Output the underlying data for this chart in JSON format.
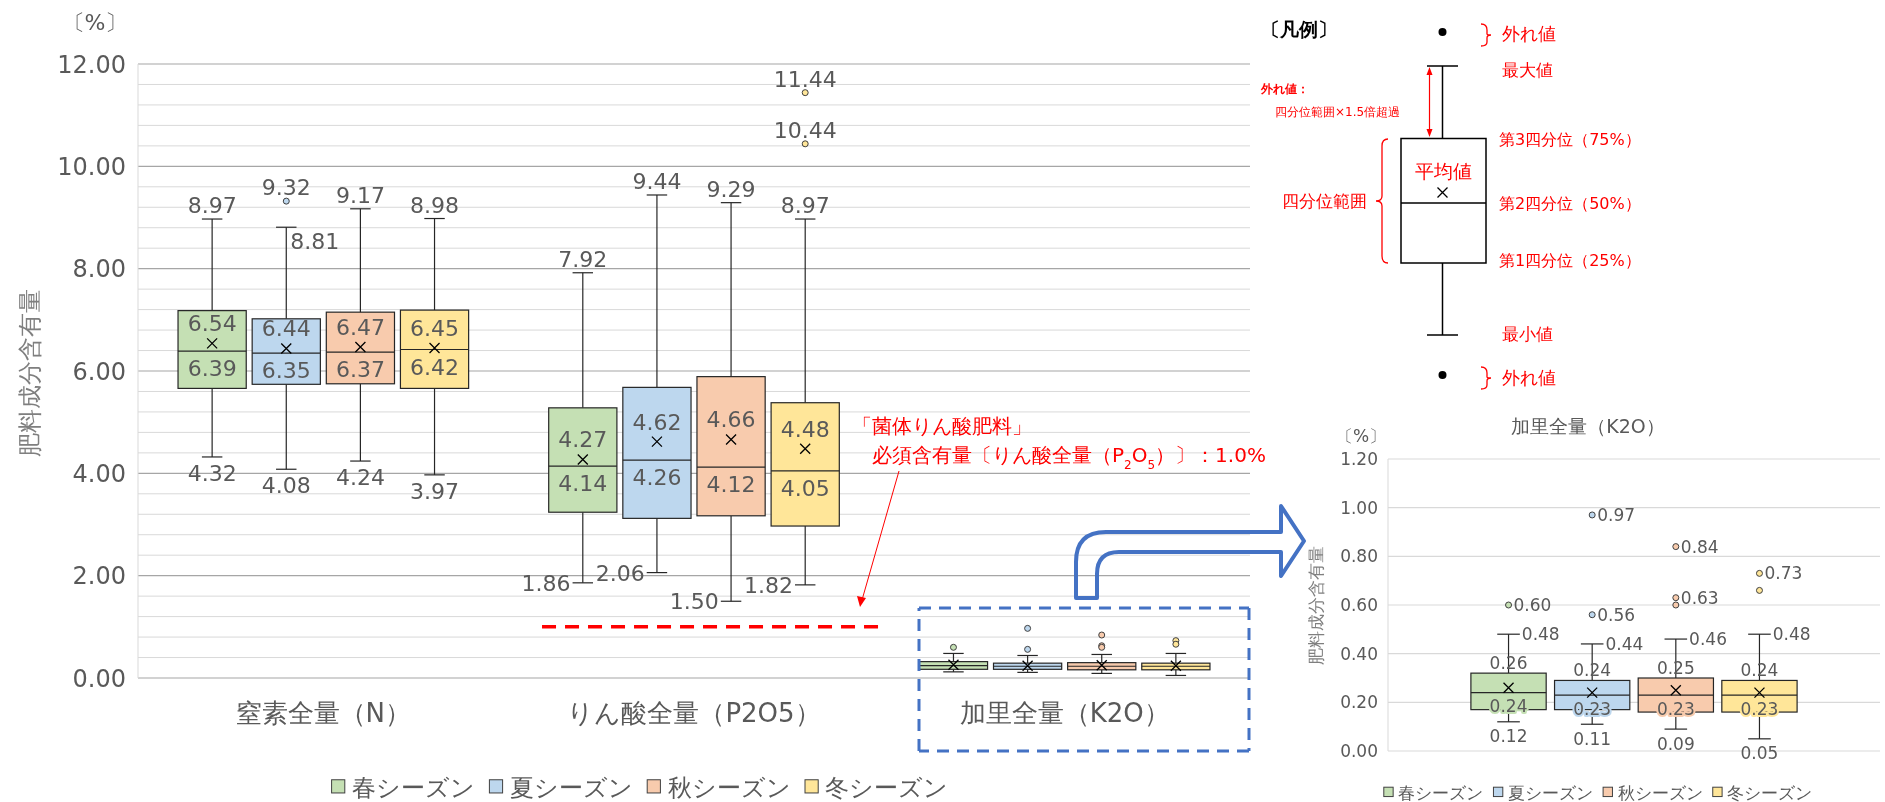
{
  "chart_data": [
    {
      "type": "box",
      "categories": [
        "窒素全量（N）",
        "りん酸全量（P2O5）",
        "加里全量（K2O）"
      ],
      "ylabel": "肥料成分含有量",
      "annotations": [
        "〔%〕",
        "「菌体りん酸肥料」"
      ],
      "ylim": [
        0,
        12
      ],
      "yticks": [
        {
          "value": 0,
          "label": "0.00"
        },
        {
          "value": 2,
          "label": "2.00"
        },
        {
          "value": 4,
          "label": "4.00"
        },
        {
          "value": 6,
          "label": "6.00"
        },
        {
          "value": 8,
          "label": "8.00"
        },
        {
          "value": 10,
          "label": "10.00"
        },
        {
          "value": 12,
          "label": "12.00"
        }
      ],
      "grid": "y",
      "legend": "bottom",
      "ref_lines": [
        {
          "axis": "y",
          "value": 1.0,
          "label": "必須含有量〔りん酸全量（P$_{2}$O$_{5}$）〕：1.0%",
          "color": "#ff0000",
          "line_style": "dashed"
        }
      ],
      "series": [
        {
          "name": "春シーズン",
          "color": "#c5e0b4",
          "boxes": [
            {
              "low": 4.32,
              "q1": 5.66,
              "median": 6.39,
              "q3": 7.18,
              "high": 8.97,
              "mean": 6.54
            },
            {
              "low": 1.86,
              "q1": 3.24,
              "median": 4.14,
              "q3": 5.28,
              "high": 7.92,
              "mean": 4.27
            },
            {
              "low": 0.12,
              "q1": 0.17,
              "median": 0.24,
              "q3": 0.32,
              "high": 0.48,
              "mean": 0.26,
              "outliers": [
                0.6
              ]
            }
          ],
          "value_labels": [
            [
              "8.97",
              "4.32",
              "6.54",
              "6.39"
            ],
            [
              "7.92",
              "1.86",
              "4.27",
              "4.14"
            ],
            null
          ]
        },
        {
          "name": "夏シーズン",
          "color": "#bdd7ee",
          "boxes": [
            {
              "low": 4.08,
              "q1": 5.74,
              "median": 6.35,
              "q3": 7.02,
              "high": 8.81,
              "mean": 6.44,
              "outliers": [
                9.32
              ]
            },
            {
              "low": 2.06,
              "q1": 3.12,
              "median": 4.26,
              "q3": 5.68,
              "high": 9.44,
              "mean": 4.62
            },
            {
              "low": 0.11,
              "q1": 0.17,
              "median": 0.23,
              "q3": 0.29,
              "high": 0.44,
              "mean": 0.24,
              "outliers": [
                0.97,
                0.56
              ]
            }
          ],
          "value_labels": [
            [
              "8.81",
              "4.08",
              "6.44",
              "6.35",
              "9.32"
            ],
            [
              "9.44",
              "2.06",
              "4.62",
              "4.26"
            ],
            null
          ]
        },
        {
          "name": "秋シーズン",
          "color": "#f8cbad",
          "boxes": [
            {
              "low": 4.24,
              "q1": 5.75,
              "median": 6.37,
              "q3": 7.15,
              "high": 9.17,
              "mean": 6.47
            },
            {
              "low": 1.5,
              "q1": 3.17,
              "median": 4.12,
              "q3": 5.89,
              "high": 9.29,
              "mean": 4.66
            },
            {
              "low": 0.09,
              "q1": 0.16,
              "median": 0.23,
              "q3": 0.3,
              "high": 0.46,
              "mean": 0.25,
              "outliers": [
                0.84,
                0.63,
                0.6
              ]
            }
          ],
          "value_labels": [
            [
              "9.17",
              "4.24",
              "6.47",
              "6.37"
            ],
            [
              "9.29",
              "1.50",
              "4.66",
              "4.12"
            ],
            null
          ]
        },
        {
          "name": "冬シーズン",
          "color": "#ffe699",
          "boxes": [
            {
              "low": 3.97,
              "q1": 5.66,
              "median": 6.42,
              "q3": 7.19,
              "high": 8.98,
              "mean": 6.45
            },
            {
              "low": 1.82,
              "q1": 2.97,
              "median": 4.05,
              "q3": 5.38,
              "high": 8.97,
              "mean": 4.48,
              "outliers": [
                11.44,
                10.44
              ]
            },
            {
              "low": 0.05,
              "q1": 0.16,
              "median": 0.23,
              "q3": 0.29,
              "high": 0.48,
              "mean": 0.24,
              "outliers": [
                0.73,
                0.66
              ]
            }
          ],
          "value_labels": [
            [
              "8.98",
              "3.97",
              "6.45",
              "6.42"
            ],
            [
              "8.97",
              "1.82",
              "4.48",
              "4.05",
              "11.44",
              "10.44"
            ],
            null
          ]
        }
      ]
    },
    {
      "type": "other",
      "title": "〔凡例〕",
      "annotations": [
        "外れ値",
        "最大値",
        "外れ値：",
        "四分位範囲×1.5倍超過",
        "平均値",
        "第3四分位（75%）",
        "四分位範囲",
        "第2四分位（50%）",
        "第1四分位（25%）",
        "最小値",
        "外れ値"
      ]
    },
    {
      "type": "box",
      "title": "加里全量（K2O）",
      "categories": [
        null
      ],
      "ylabel": "肥料成分含有量",
      "annotations": [
        "〔%〕"
      ],
      "ylim": [
        0,
        1.2
      ],
      "yticks": [
        {
          "value": 0,
          "label": "0.00"
        },
        {
          "value": 0.2,
          "label": "0.20"
        },
        {
          "value": 0.4,
          "label": "0.40"
        },
        {
          "value": 0.6,
          "label": "0.60"
        },
        {
          "value": 0.8,
          "label": "0.80"
        },
        {
          "value": 1.0,
          "label": "1.00"
        },
        {
          "value": 1.2,
          "label": "1.20"
        }
      ],
      "grid": "y",
      "legend": "bottom",
      "series": [
        {
          "name": "春シーズン",
          "color": "#c5e0b4",
          "boxes": [
            {
              "low": 0.12,
              "q1": 0.17,
              "median": 0.24,
              "q3": 0.32,
              "high": 0.48,
              "mean": 0.26,
              "outliers": [
                0.6
              ]
            }
          ],
          "value_labels": [
            [
              "0.48",
              "0.12",
              "0.26",
              "0.24",
              "0.60"
            ]
          ]
        },
        {
          "name": "夏シーズン",
          "color": "#bdd7ee",
          "boxes": [
            {
              "low": 0.11,
              "q1": 0.17,
              "median": 0.23,
              "q3": 0.29,
              "high": 0.44,
              "mean": 0.24,
              "outliers": [
                0.97,
                0.56
              ]
            }
          ],
          "value_labels": [
            [
              "0.44",
              "0.11",
              "0.24",
              "0.23",
              "0.97",
              "0.56"
            ]
          ]
        },
        {
          "name": "秋シーズン",
          "color": "#f8cbad",
          "boxes": [
            {
              "low": 0.09,
              "q1": 0.16,
              "median": 0.23,
              "q3": 0.3,
              "high": 0.46,
              "mean": 0.25,
              "outliers": [
                0.84,
                0.63,
                0.6
              ]
            }
          ],
          "value_labels": [
            [
              "0.46",
              "0.09",
              "0.25",
              "0.23",
              "0.84",
              "0.63",
              null
            ]
          ]
        },
        {
          "name": "冬シーズン",
          "color": "#ffe699",
          "boxes": [
            {
              "low": 0.05,
              "q1": 0.16,
              "median": 0.23,
              "q3": 0.29,
              "high": 0.48,
              "mean": 0.24,
              "outliers": [
                0.73,
                0.66
              ]
            }
          ],
          "value_labels": [
            [
              "0.48",
              "0.05",
              "0.24",
              "0.23",
              "0.73",
              null
            ]
          ]
        }
      ]
    }
  ]
}
